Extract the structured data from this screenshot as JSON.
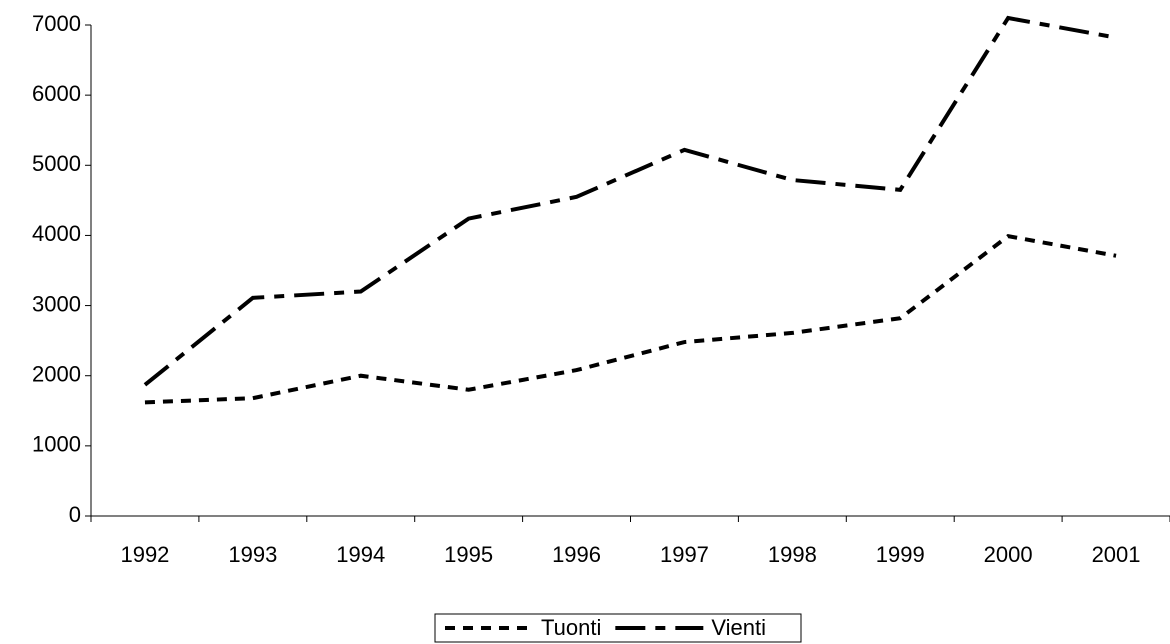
{
  "chart_data": {
    "type": "line",
    "categories": [
      "1992",
      "1993",
      "1994",
      "1995",
      "1996",
      "1997",
      "1998",
      "1999",
      "2000",
      "2001"
    ],
    "series": [
      {
        "name": "Tuonti",
        "color": "#000000",
        "dash": "short",
        "values": [
          1620,
          1680,
          2000,
          1800,
          2080,
          2480,
          2610,
          2820,
          3990,
          3710
        ]
      },
      {
        "name": "Vienti",
        "color": "#000000",
        "dash": "long",
        "values": [
          1870,
          3110,
          3200,
          4240,
          4550,
          5220,
          4790,
          4650,
          7100,
          6820
        ]
      }
    ],
    "ylim": [
      0,
      7000
    ],
    "yticks": [
      0,
      1000,
      2000,
      3000,
      4000,
      5000,
      6000,
      7000
    ],
    "grid": false,
    "legend": "bottom"
  }
}
